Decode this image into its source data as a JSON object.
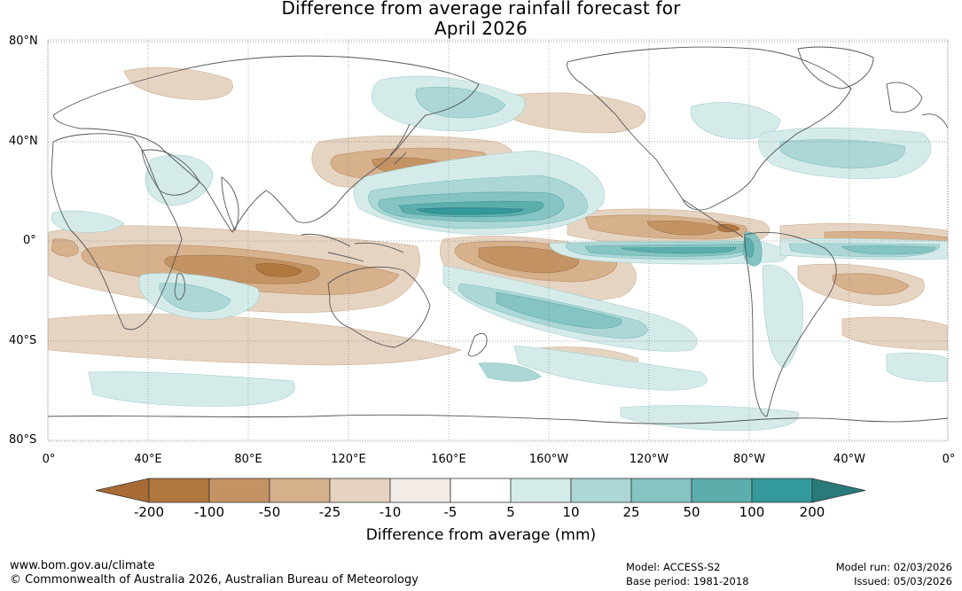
{
  "title": {
    "line1": "Difference from average rainfall forecast for",
    "line2": "April 2026"
  },
  "map": {
    "lat_labels": [
      "80°N",
      "40°N",
      "0°",
      "40°S",
      "80°S"
    ],
    "lon_labels": [
      "0°",
      "40°E",
      "80°E",
      "120°E",
      "160°E",
      "160°W",
      "120°W",
      "80°W",
      "40°W",
      "0°"
    ]
  },
  "legend": {
    "ticks": [
      "-200",
      "-100",
      "-50",
      "-25",
      "-10",
      "-5",
      "5",
      "10",
      "25",
      "50",
      "100",
      "200"
    ],
    "colors": [
      "#a86b35",
      "#b0773f",
      "#c49363",
      "#d7b08c",
      "#e5d2bf",
      "#f2ebe6",
      "#ffffff",
      "#d5ebea",
      "#acd7d6",
      "#85c4c2",
      "#5caeac",
      "#33999a",
      "#2a7a7b"
    ],
    "caption": "Difference from average (mm)"
  },
  "footer": {
    "url": "www.bom.gov.au/climate",
    "copyright": "© Commonwealth of Australia 2026, Australian Bureau of Meteorology",
    "model": "Model: ACCESS-S2",
    "base_period": "Base period: 1981-2018",
    "model_run": "Model run: 02/03/2026",
    "issued": "Issued: 05/03/2026"
  }
}
